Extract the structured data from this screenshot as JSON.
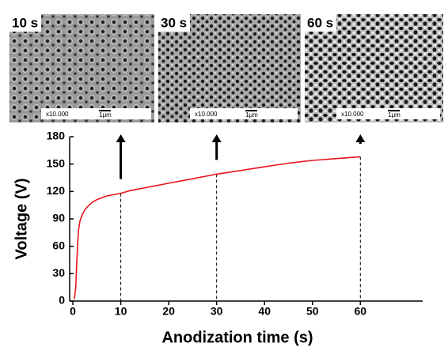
{
  "chart_data": {
    "type": "line",
    "xlabel": "Anodization time (s)",
    "ylabel": "Voltage (V)",
    "x": [
      0.3,
      0.6,
      0.8,
      1,
      1.2,
      1.5,
      2,
      2.5,
      3,
      4,
      5,
      7,
      10,
      12,
      15,
      20,
      25,
      30,
      35,
      40,
      45,
      50,
      55,
      60
    ],
    "values": [
      2,
      15,
      40,
      62,
      78,
      88,
      95,
      100,
      103,
      108,
      111,
      115,
      118,
      121,
      124,
      129,
      134,
      139,
      143,
      147,
      151,
      154,
      156,
      158
    ],
    "color": "#e8141a",
    "xlim": [
      -1,
      73
    ],
    "xticks": [
      0,
      10,
      20,
      30,
      40,
      50,
      60
    ],
    "ylim": [
      0,
      180
    ],
    "yticks": [
      0,
      30,
      60,
      90,
      120,
      150,
      180
    ],
    "markers_x": [
      10,
      30,
      60
    ],
    "images": [
      {
        "label": "10 s",
        "magnification": "x10.000",
        "scale": "1μm"
      },
      {
        "label": "30 s",
        "magnification": "x10.000",
        "scale": "1μm"
      },
      {
        "label": "60 s",
        "magnification": "x10.000",
        "scale": "1μm"
      }
    ]
  }
}
